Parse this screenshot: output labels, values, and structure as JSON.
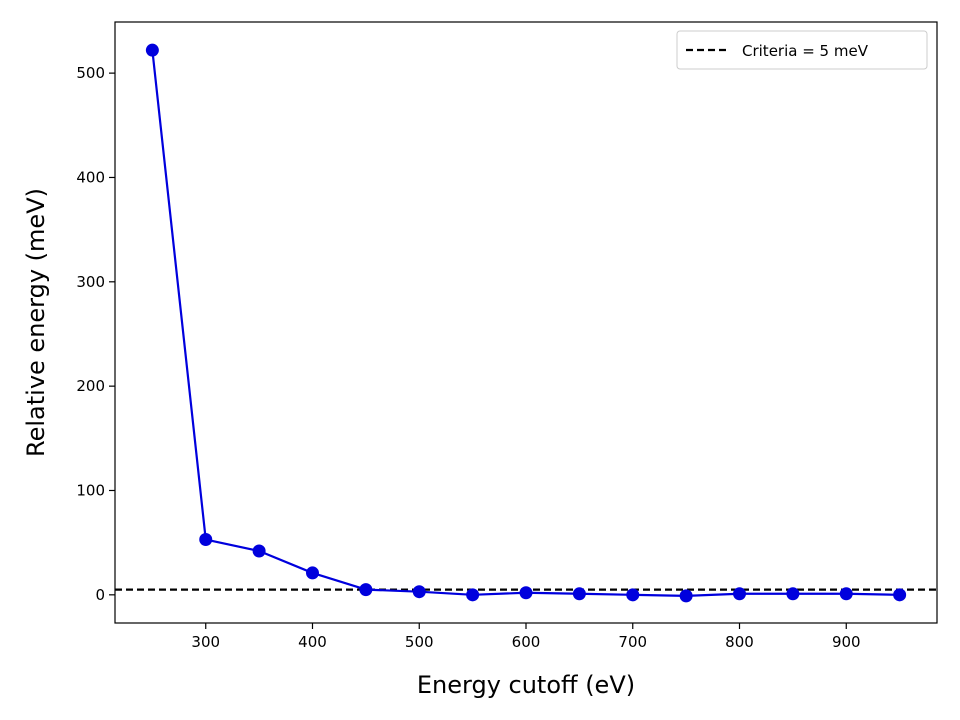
{
  "chart_data": {
    "type": "line",
    "title": "",
    "xlabel": "Energy cutoff (eV)",
    "ylabel": "Relative energy (meV)",
    "xlim": [
      215,
      985
    ],
    "ylim": [
      -27,
      549
    ],
    "xticks": [
      300,
      400,
      500,
      600,
      700,
      800,
      900
    ],
    "yticks": [
      0,
      100,
      200,
      300,
      400,
      500
    ],
    "grid": false,
    "legend": "top-right",
    "series": [
      {
        "name": "",
        "color": "#0000dd",
        "marker": "circle",
        "x": [
          250,
          300,
          350,
          400,
          450,
          500,
          550,
          600,
          650,
          700,
          750,
          800,
          850,
          900,
          950
        ],
        "y": [
          522,
          53,
          42,
          21,
          5,
          3,
          0,
          2,
          1,
          0,
          -1,
          1,
          1,
          1,
          0
        ]
      }
    ],
    "reference_lines": [
      {
        "name": "Criteria = 5 meV",
        "orientation": "horizontal",
        "value": 5,
        "style": "dashed",
        "color": "#000000"
      }
    ]
  }
}
